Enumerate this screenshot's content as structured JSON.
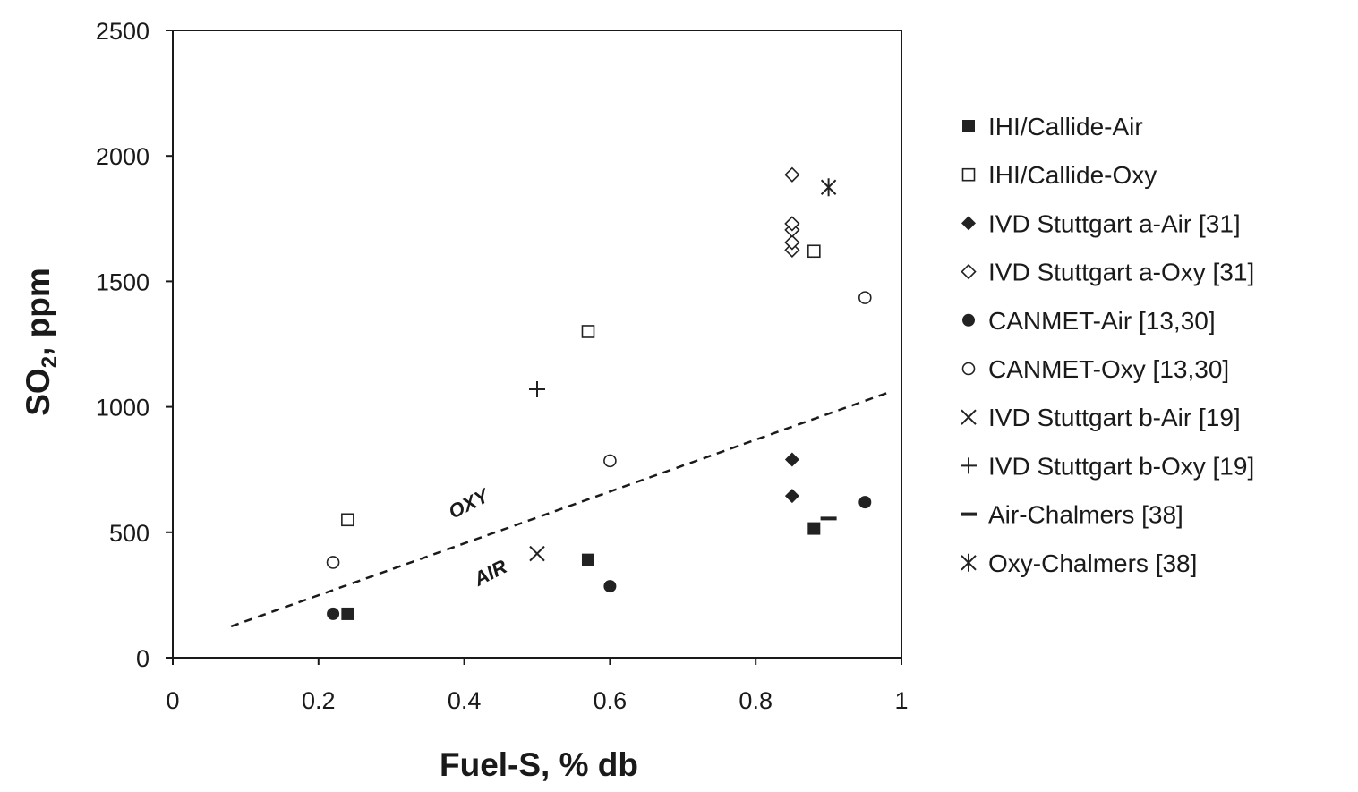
{
  "chart_data": {
    "type": "scatter",
    "xlabel": "Fuel-S, % db",
    "ylabel_main": "SO",
    "ylabel_sub": "2",
    "ylabel_rest": ", ppm",
    "xlim": [
      0,
      1
    ],
    "ylim": [
      0,
      2500
    ],
    "x_ticks": [
      "0",
      "0.2",
      "0.4",
      "0.6",
      "0.8",
      "1"
    ],
    "y_ticks": [
      "0",
      "500",
      "1000",
      "1500",
      "2000",
      "2500"
    ],
    "grid": false,
    "legend_position": "right",
    "series": [
      {
        "name": "IHI/Callide-Air",
        "marker": "square-filled",
        "points": [
          [
            0.24,
            175
          ],
          [
            0.57,
            390
          ],
          [
            0.88,
            515
          ]
        ]
      },
      {
        "name": "IHI/Callide-Oxy",
        "marker": "square-open",
        "points": [
          [
            0.24,
            550
          ],
          [
            0.57,
            1300
          ],
          [
            0.88,
            1620
          ]
        ]
      },
      {
        "name": "IVD Stuttgart a-Air [31]",
        "marker": "diamond-filled",
        "points": [
          [
            0.85,
            645
          ],
          [
            0.85,
            790
          ]
        ]
      },
      {
        "name": "IVD Stuttgart a-Oxy [31]",
        "marker": "diamond-open",
        "points": [
          [
            0.85,
            1625
          ],
          [
            0.85,
            1655
          ],
          [
            0.85,
            1705
          ],
          [
            0.85,
            1730
          ],
          [
            0.85,
            1925
          ]
        ]
      },
      {
        "name": "CANMET-Air [13,30]",
        "marker": "circle-filled",
        "points": [
          [
            0.22,
            175
          ],
          [
            0.6,
            285
          ],
          [
            0.95,
            620
          ]
        ]
      },
      {
        "name": "CANMET-Oxy [13,30]",
        "marker": "circle-open",
        "points": [
          [
            0.22,
            380
          ],
          [
            0.6,
            785
          ],
          [
            0.95,
            1435
          ]
        ]
      },
      {
        "name": "IVD Stuttgart b-Air [19]",
        "marker": "x",
        "points": [
          [
            0.5,
            415
          ]
        ]
      },
      {
        "name": "IVD Stuttgart b-Oxy [19]",
        "marker": "plus",
        "points": [
          [
            0.5,
            1070
          ]
        ]
      },
      {
        "name": "Air-Chalmers [38]",
        "marker": "dash",
        "points": [
          [
            0.9,
            555
          ]
        ]
      },
      {
        "name": "Oxy-Chalmers [38]",
        "marker": "star",
        "points": [
          [
            0.9,
            1875
          ]
        ]
      }
    ],
    "trendline": {
      "style": "dashed",
      "points": [
        [
          0.08,
          125
        ],
        [
          0.98,
          1055
        ]
      ]
    },
    "annotations": [
      {
        "text": "OXY",
        "x": 0.41,
        "y": 590,
        "angle": -27
      },
      {
        "text": "AIR",
        "x": 0.44,
        "y": 315,
        "angle": -27
      }
    ]
  }
}
